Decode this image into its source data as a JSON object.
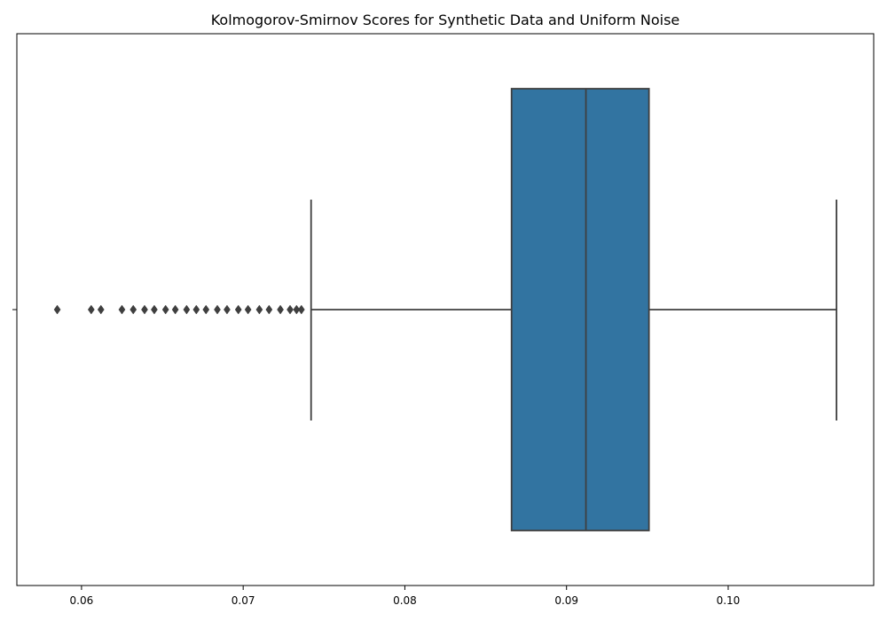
{
  "chart_data": {
    "type": "box",
    "title": "Kolmogorov-Smirnov Scores for Synthetic Data and Uniform Noise",
    "xlabel": "",
    "ylabel": "",
    "orientation": "horizontal",
    "xlim": [
      0.056,
      0.109
    ],
    "xticks": [
      0.06,
      0.07,
      0.08,
      0.09,
      0.1
    ],
    "xtick_labels": [
      "0.06",
      "0.07",
      "0.08",
      "0.09",
      "0.10"
    ],
    "box": {
      "whisker_low": 0.0742,
      "q1": 0.0866,
      "median": 0.0912,
      "q3": 0.0951,
      "whisker_high": 0.1067
    },
    "outliers": [
      0.0585,
      0.0606,
      0.0612,
      0.0625,
      0.0632,
      0.0639,
      0.0645,
      0.0652,
      0.0658,
      0.0665,
      0.0671,
      0.0677,
      0.0684,
      0.069,
      0.0697,
      0.0703,
      0.071,
      0.0716,
      0.0723,
      0.0729,
      0.0733,
      0.0736
    ],
    "colors": {
      "box_fill": "#3274a1",
      "lines": "#3f3f3f",
      "axes": "#000000"
    },
    "grid": false
  }
}
